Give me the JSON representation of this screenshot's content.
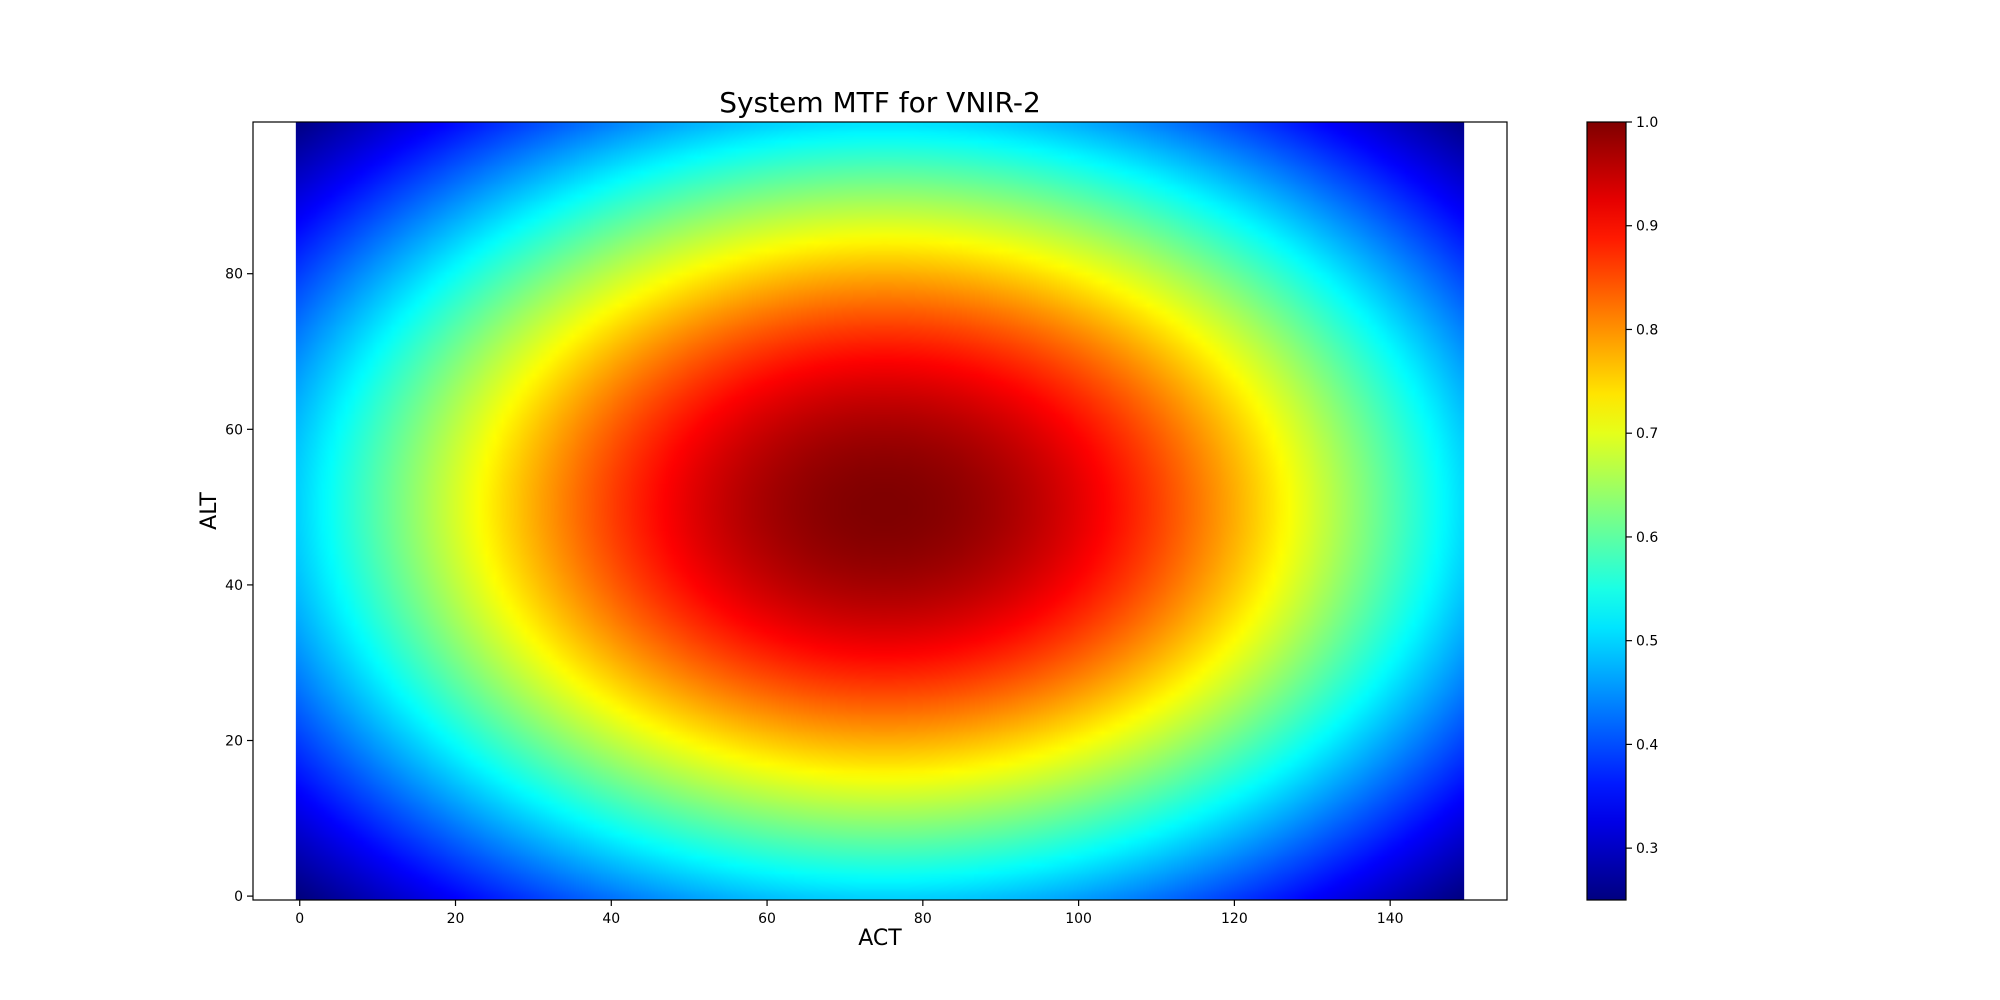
{
  "chart_data": {
    "type": "heatmap",
    "title": "System MTF for VNIR-2",
    "xlabel": "ACT",
    "ylabel": "ALT",
    "colormap": "jet",
    "grid": false,
    "columns": 150,
    "rows": 100,
    "xlim": [
      -6,
      155
    ],
    "ylim": [
      -0.5,
      99.5
    ],
    "xticks": [
      0,
      20,
      40,
      60,
      80,
      100,
      120,
      140
    ],
    "yticks": [
      0,
      20,
      40,
      60,
      80
    ],
    "peak": {
      "x": 75,
      "y": 50,
      "value": 1.0
    },
    "corner_value": 0.25,
    "colorbar": {
      "min": 0.25,
      "max": 1.0,
      "ticks": [
        "0.3",
        "0.4",
        "0.5",
        "0.6",
        "0.7",
        "0.8",
        "0.9",
        "1.0"
      ]
    }
  }
}
